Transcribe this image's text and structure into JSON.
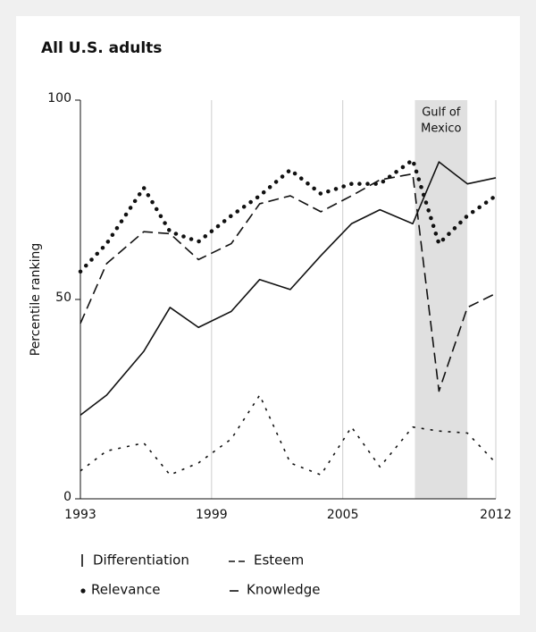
{
  "chart_data": {
    "type": "line",
    "title": "All U.S. adults",
    "y_label": "Percentile ranking",
    "x": [
      1993,
      1994.2,
      1995.9,
      1997.1,
      1998.4,
      1999.9,
      2001.2,
      2002.6,
      2004,
      2005.4,
      2006.7,
      2008.2,
      2009.4,
      2010.7,
      2012
    ],
    "xlim": [
      1993,
      2012
    ],
    "xticks": [
      1993,
      1999,
      2005,
      2012
    ],
    "ylim": [
      0,
      100
    ],
    "yticks": [
      0,
      50,
      100
    ],
    "grid": true,
    "series": [
      {
        "name": "Differentiation",
        "color": "#111111",
        "dash": "3 7",
        "values": [
          7,
          12,
          14,
          6,
          9,
          15,
          26,
          9,
          6,
          18,
          8,
          18,
          17,
          16.5,
          9
        ]
      },
      {
        "name": "Esteem",
        "color": "#111111",
        "dash": "12 6",
        "values": [
          44,
          59,
          67,
          66.5,
          60,
          64,
          74,
          76,
          72,
          76,
          80,
          81.5,
          27,
          48,
          51.5
        ]
      },
      {
        "name": "Relevance",
        "color": "#111111",
        "dash": "0.1 9",
        "values": [
          57,
          64,
          78,
          67,
          64.5,
          71,
          76,
          82.5,
          76.5,
          79,
          79,
          85,
          64,
          71,
          76
        ]
      },
      {
        "name": "Knowledge",
        "color": "#111111",
        "dash": "none",
        "values": [
          21,
          26,
          37,
          48,
          43,
          47,
          55,
          52.5,
          61,
          69,
          72.5,
          69,
          84.5,
          79,
          80.5
        ]
      }
    ],
    "annotations": [
      {
        "text": [
          "Gulf of",
          "Mexico"
        ],
        "x_range": [
          2008.3,
          2010.7
        ],
        "color": "#e0e0e0"
      }
    ]
  }
}
